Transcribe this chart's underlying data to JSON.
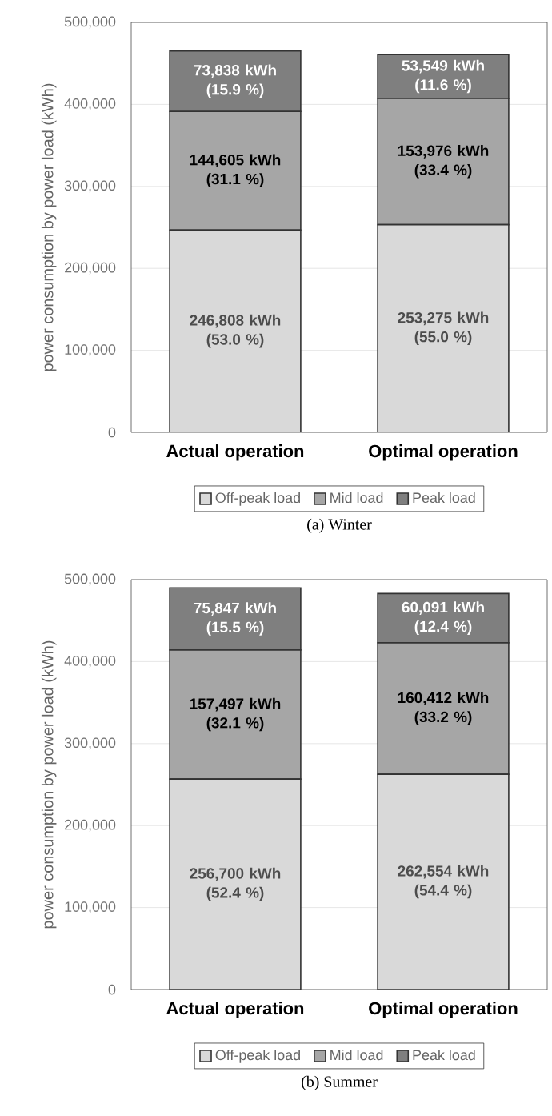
{
  "chart_data": [
    {
      "type": "bar",
      "stacked": true,
      "title": "(a)  Winter",
      "ylabel": "power consumption by power load (kWh)",
      "categories": [
        "Actual operation",
        "Optimal operation"
      ],
      "ylim": [
        0,
        500000
      ],
      "yticks": [
        {
          "value": 0,
          "label": "0"
        },
        {
          "value": 100000,
          "label": "100,000"
        },
        {
          "value": 200000,
          "label": "200,000"
        },
        {
          "value": 300000,
          "label": "300,000"
        },
        {
          "value": 400000,
          "label": "400,000"
        },
        {
          "value": 500000,
          "label": "500,000"
        }
      ],
      "grid": "y",
      "legend": "bottom",
      "series": [
        {
          "name": "Off-peak load",
          "color": "#d9d9d9",
          "values": [
            246808,
            253275
          ],
          "value_labels": [
            "246,808 kWh (53.0 %)",
            "253,275 kWh (55.0 %)"
          ]
        },
        {
          "name": "Mid load",
          "color": "#a6a6a6",
          "values": [
            144605,
            153976
          ],
          "value_labels": [
            "144,605 kWh (31.1 %)",
            "153,976 kWh (33.4 %)"
          ]
        },
        {
          "name": "Peak load",
          "color": "#7f7f7f",
          "values": [
            73838,
            53549
          ],
          "value_labels": [
            "73,838 kWh (15.9 %)",
            "53,549 kWh (11.6 %)"
          ]
        }
      ]
    },
    {
      "type": "bar",
      "stacked": true,
      "title": "(b)  Summer",
      "ylabel": "power consumption by power load (kWh)",
      "categories": [
        "Actual operation",
        "Optimal operation"
      ],
      "ylim": [
        0,
        500000
      ],
      "yticks": [
        {
          "value": 0,
          "label": "0"
        },
        {
          "value": 100000,
          "label": "100,000"
        },
        {
          "value": 200000,
          "label": "200,000"
        },
        {
          "value": 300000,
          "label": "300,000"
        },
        {
          "value": 400000,
          "label": "400,000"
        },
        {
          "value": 500000,
          "label": "500,000"
        }
      ],
      "grid": "y",
      "legend": "bottom",
      "series": [
        {
          "name": "Off-peak load",
          "color": "#d9d9d9",
          "values": [
            256700,
            262554
          ],
          "value_labels": [
            "256,700 kWh (52.4 %)",
            "262,554 kWh (54.4 %)"
          ]
        },
        {
          "name": "Mid load",
          "color": "#a6a6a6",
          "values": [
            157497,
            160412
          ],
          "value_labels": [
            "157,497 kWh (32.1 %)",
            "160,412 kWh (33.2 %)"
          ]
        },
        {
          "name": "Peak load",
          "color": "#7f7f7f",
          "values": [
            75847,
            60091
          ],
          "value_labels": [
            "75,847 kWh (15.5 %)",
            "60,091 kWh (12.4 %)"
          ]
        }
      ]
    }
  ]
}
